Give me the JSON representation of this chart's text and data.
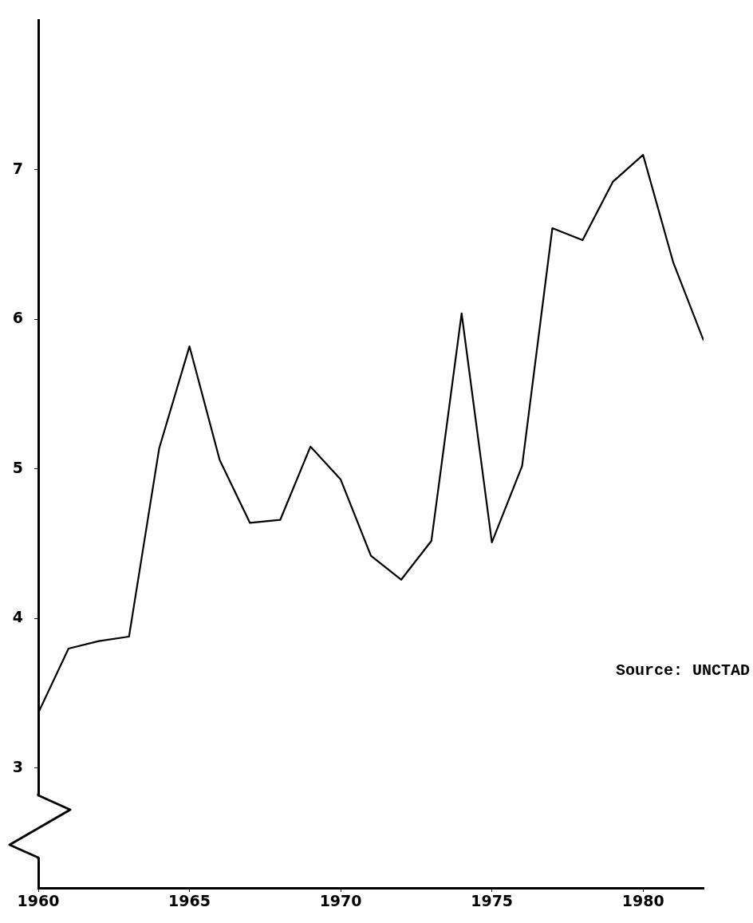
{
  "chart_data": {
    "type": "line",
    "x": [
      1960,
      1961,
      1962,
      1963,
      1964,
      1965,
      1966,
      1967,
      1968,
      1969,
      1970,
      1971,
      1972,
      1973,
      1974,
      1975,
      1976,
      1977,
      1978,
      1979,
      1980,
      1981,
      1982
    ],
    "series": [
      {
        "color": "#000000",
        "values": [
          3.37,
          3.8,
          3.85,
          3.88,
          5.14,
          5.82,
          5.06,
          4.64,
          4.66,
          5.15,
          4.93,
          4.42,
          4.26,
          4.52,
          6.04,
          4.51,
          5.02,
          6.61,
          6.53,
          6.92,
          7.1,
          6.38,
          5.86
        ]
      }
    ],
    "xlim": [
      1960,
      1982
    ],
    "xticks": [
      1960,
      1965,
      1970,
      1975,
      1980
    ],
    "ylim": [
      2.2,
      8
    ],
    "yticks": [
      3,
      4,
      5,
      6,
      7
    ],
    "annotations": [
      "Source: UNCTAD"
    ],
    "grid": false,
    "legend": false,
    "marker": "none",
    "line_style": "solid"
  }
}
